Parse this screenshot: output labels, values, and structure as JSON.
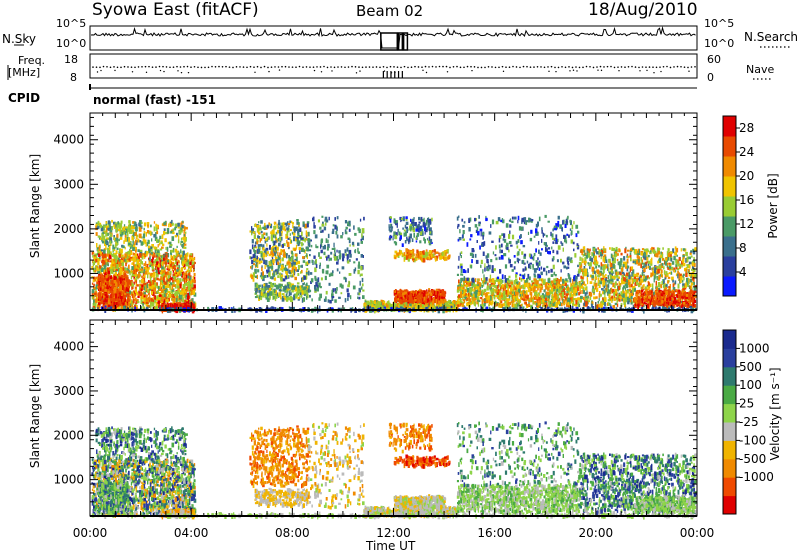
{
  "header": {
    "title": "Syowa East (fitACF)",
    "beam": "Beam 02",
    "date": "18/Aug/2010"
  },
  "top_panels": {
    "nsky_label": "N.Sky",
    "nsearch_label": "N.Search",
    "noise_ticks_left": [
      "10^5",
      "10^0"
    ],
    "noise_ticks_right": [
      "10^5",
      "10^0"
    ],
    "freq_label_line1": "Freq.",
    "freq_label_line2": "[MHz]",
    "freq_ticks": [
      "18",
      "8"
    ],
    "nave_label": "Nave",
    "nave_ticks": [
      "60",
      "0"
    ],
    "cpid_label": "CPID",
    "cpid_value": "normal (fast) -151"
  },
  "colors": {
    "power": [
      "#0a1aff",
      "#2a3f9e",
      "#3a6f8c",
      "#4a9a66",
      "#99cc33",
      "#f0c400",
      "#f08a00",
      "#e84a00",
      "#e00000"
    ],
    "velocity": [
      "#e00000",
      "#f04a00",
      "#f08a00",
      "#f0b400",
      "#bbbbbb",
      "#8ed44a",
      "#4aaa44",
      "#2e7a6e",
      "#2a3f9e",
      "#1a2a8e"
    ]
  },
  "chart_data": [
    {
      "type": "heatmap",
      "name": "power",
      "ylabel": "Slant Range [km]",
      "yticks": [
        "1000",
        "2000",
        "3000",
        "4000"
      ],
      "ylim": [
        180,
        4600
      ],
      "xlim_hours": [
        0,
        24
      ],
      "colorbar_label": "Power [dB]",
      "colorbar_ticks": [
        "4",
        "8",
        "12",
        "16",
        "20",
        "24",
        "28"
      ],
      "colorbar_range": [
        0,
        30
      ]
    },
    {
      "type": "heatmap",
      "name": "velocity",
      "ylabel": "Slant Range [km]",
      "yticks": [
        "1000",
        "2000",
        "3000",
        "4000"
      ],
      "ylim": [
        180,
        4600
      ],
      "xlim_hours": [
        0,
        24
      ],
      "xlabel": "Time UT",
      "xticks": [
        "00:00",
        "04:00",
        "08:00",
        "12:00",
        "16:00",
        "20:00",
        "00:00"
      ],
      "colorbar_label": "Velocity [m s⁻¹]",
      "colorbar_ticks": [
        "1000",
        "500",
        "100",
        "25",
        "-25",
        "-100",
        "-500",
        "-1000"
      ]
    }
  ]
}
